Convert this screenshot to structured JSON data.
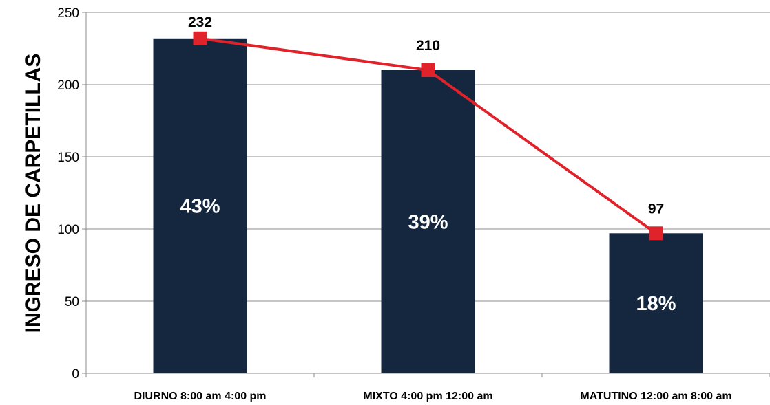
{
  "chart_data": {
    "type": "bar",
    "ylabel": "INGRESO DE CARPETILLAS",
    "xlabel": "",
    "categories": [
      "DIURNO 8:00 am 4:00 pm",
      "MIXTO 4:00 pm 12:00 am",
      "MATUTINO 12:00 am 8:00 am"
    ],
    "values": [
      232,
      210,
      97
    ],
    "bar_labels": [
      "43%",
      "39%",
      "18%"
    ],
    "line_values": [
      232,
      210,
      97
    ],
    "line_labels": [
      "232",
      "210",
      "97"
    ],
    "ylim": [
      0,
      250
    ],
    "yticks": [
      "0",
      "50",
      "100",
      "150",
      "200",
      "250"
    ],
    "grid": true,
    "colors": {
      "bar": "#14273f",
      "line": "#e0232b",
      "marker": "#e0232b",
      "grid": "#8c8c8c"
    }
  }
}
